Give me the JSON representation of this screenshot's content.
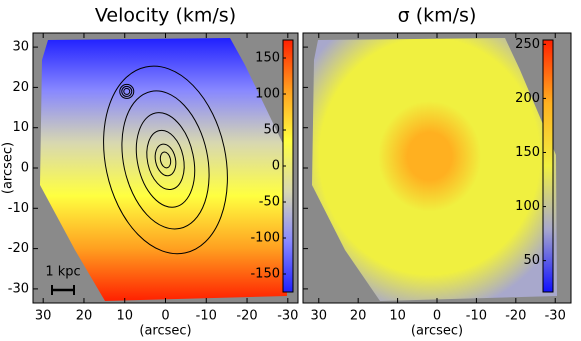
{
  "chart_data": [
    {
      "type": "map",
      "title": "Velocity (km/s)",
      "xlabel": "(arcsec)",
      "ylabel": "(arcsec)",
      "xlim": [
        32.5,
        -32.5
      ],
      "ylim": [
        -33.5,
        33.5
      ],
      "xticks": [
        30,
        20,
        10,
        0,
        -10,
        -20,
        -30
      ],
      "yticks": [
        -30,
        -20,
        -10,
        0,
        10,
        20,
        30
      ],
      "ytick_labels": true,
      "colorbar": {
        "clim": [
          -175,
          175
        ],
        "ticks": [
          -150,
          -100,
          -50,
          0,
          50,
          100,
          150
        ],
        "colors": [
          "#2020ff",
          "#8888ff",
          "#d8d8b0",
          "#ffff40",
          "#ffa020",
          "#ff2000"
        ]
      },
      "annotation": "1 kpc"
    },
    {
      "type": "map",
      "title": "σ (km/s)",
      "xlabel": "(arcsec)",
      "xlim": [
        34,
        -34
      ],
      "ylim": [
        -33.5,
        33.5
      ],
      "xticks": [
        30,
        20,
        10,
        0,
        -10,
        -20,
        -30
      ],
      "yticks": [
        -30,
        -20,
        -10,
        0,
        10,
        20,
        30
      ],
      "ytick_labels": false,
      "colorbar": {
        "clim": [
          21,
          254
        ],
        "ticks": [
          50,
          100,
          150,
          200,
          250
        ],
        "colors": [
          "#1010ff",
          "#a8a8cc",
          "#f0f040",
          "#ffb020",
          "#ff2000"
        ]
      }
    }
  ]
}
